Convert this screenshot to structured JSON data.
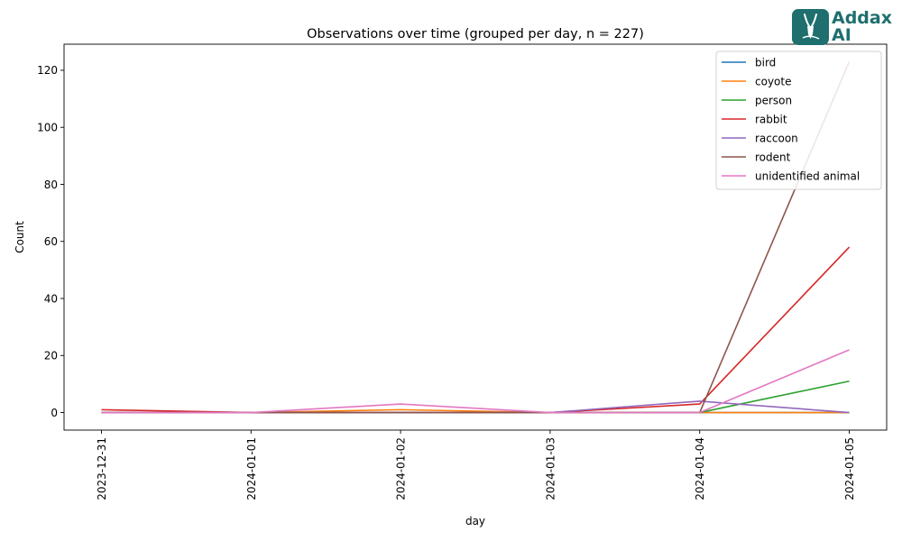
{
  "logo": {
    "line1": "Addax",
    "line2": "AI",
    "color": "#1e6f6e"
  },
  "chart_data": {
    "type": "line",
    "title": "Observations over time (grouped per day, n = 227)",
    "xlabel": "day",
    "ylabel": "Count",
    "x": [
      "2023-12-31",
      "2024-01-01",
      "2024-01-02",
      "2024-01-03",
      "2024-01-04",
      "2024-01-05"
    ],
    "ylim": [
      -6.15,
      129.15
    ],
    "yticks": [
      0,
      20,
      40,
      60,
      80,
      100,
      120
    ],
    "grid": false,
    "legend_position": "top-right",
    "series": [
      {
        "name": "bird",
        "color": "#1f77b4",
        "values": [
          0,
          0,
          0,
          0,
          0,
          0
        ]
      },
      {
        "name": "coyote",
        "color": "#ff7f0e",
        "values": [
          0,
          0,
          1,
          0,
          0,
          0
        ]
      },
      {
        "name": "person",
        "color": "#2ca02c",
        "values": [
          0,
          0,
          0,
          0,
          0,
          11
        ]
      },
      {
        "name": "rabbit",
        "color": "#d62728",
        "values": [
          1,
          0,
          0,
          0,
          3,
          58
        ]
      },
      {
        "name": "raccoon",
        "color": "#9467bd",
        "values": [
          0,
          0,
          0,
          0,
          4,
          0
        ]
      },
      {
        "name": "rodent",
        "color": "#8c564b",
        "values": [
          0,
          0,
          0,
          0,
          0,
          123
        ]
      },
      {
        "name": "unidentified animal",
        "color": "#e377c2",
        "values": [
          0,
          0,
          3,
          0,
          0,
          22
        ]
      }
    ]
  }
}
